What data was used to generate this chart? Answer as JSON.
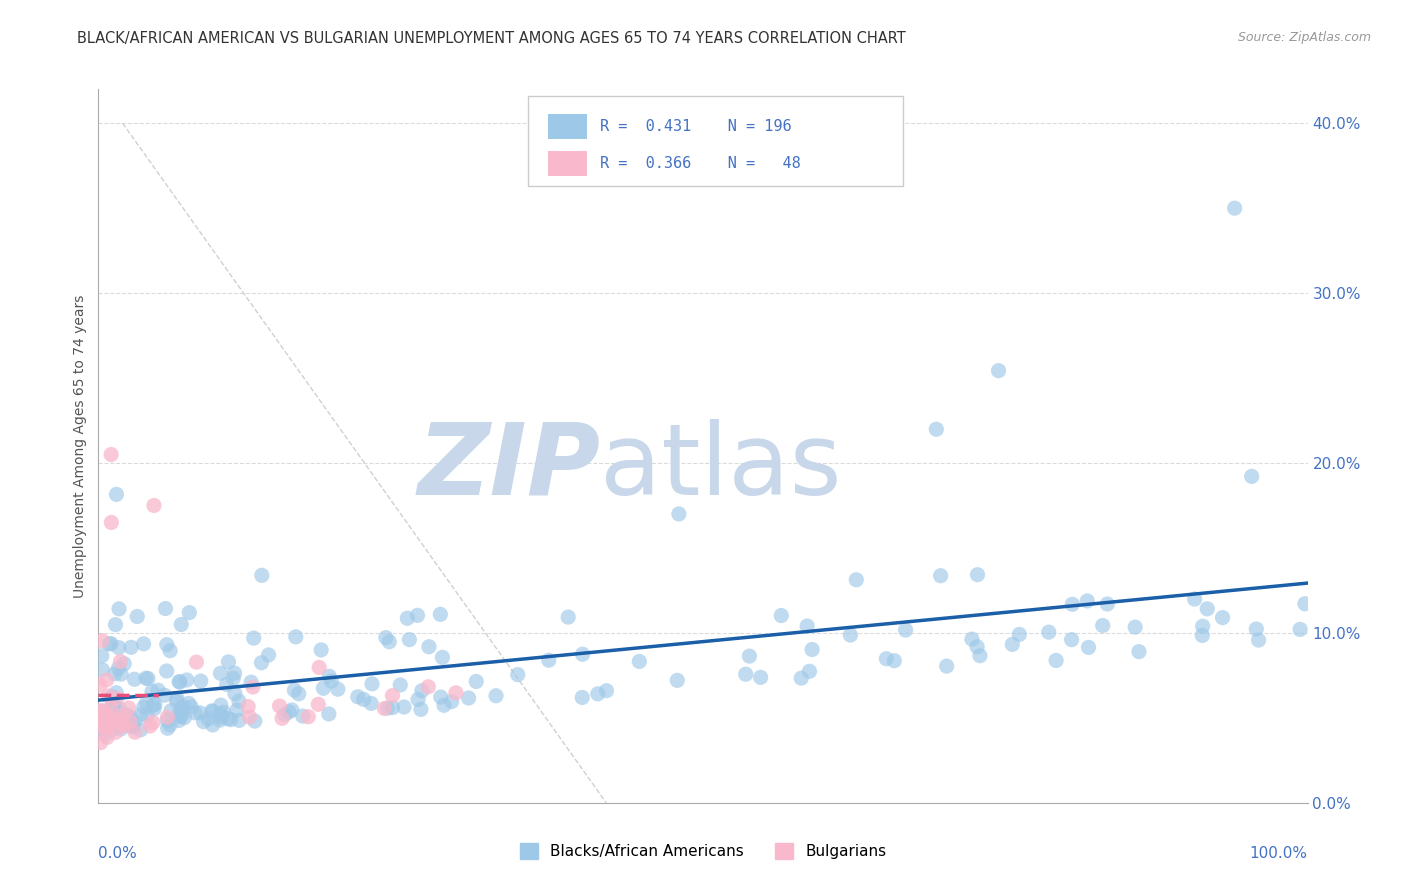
{
  "title": "BLACK/AFRICAN AMERICAN VS BULGARIAN UNEMPLOYMENT AMONG AGES 65 TO 74 YEARS CORRELATION CHART",
  "source": "Source: ZipAtlas.com",
  "ylabel": "Unemployment Among Ages 65 to 74 years",
  "ytick_values": [
    0,
    10,
    20,
    30,
    40
  ],
  "xlim": [
    0,
    100
  ],
  "ylim": [
    0,
    42
  ],
  "blue_R": 0.431,
  "blue_N": 196,
  "pink_R": 0.366,
  "pink_N": 48,
  "blue_scatter_color": "#9ec8e8",
  "pink_scatter_color": "#f9b8cb",
  "blue_line_color": "#1a5fa8",
  "pink_line_color": "#e8507a",
  "diagonal_color": "#d0d0d0",
  "watermark_zip_color": "#c8d8ea",
  "watermark_atlas_color": "#c8d8ea",
  "background_color": "#ffffff",
  "grid_color": "#d8d8d8",
  "title_color": "#333333",
  "source_color": "#999999",
  "tick_color": "#4472c4",
  "ylabel_color": "#555555"
}
